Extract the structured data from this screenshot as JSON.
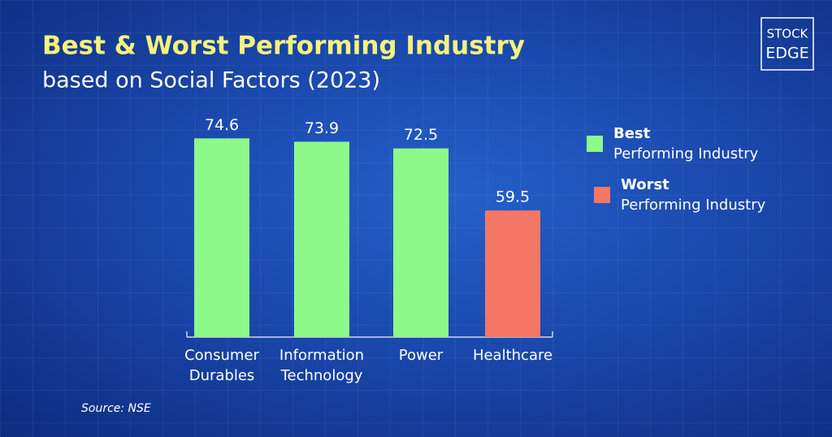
{
  "chart_data": {
    "type": "bar",
    "title": "Best & Worst Performing Industry",
    "subtitle": "based on Social Factors (2023)",
    "categories": [
      "Consumer Durables",
      "Information Technology",
      "Power",
      "Healthcare"
    ],
    "values": [
      74.6,
      73.9,
      72.5,
      59.5
    ],
    "bar_colors": [
      "#8ef98b",
      "#8ef98b",
      "#8ef98b",
      "#f47766"
    ],
    "ylim": [
      33,
      75
    ],
    "legend": [
      {
        "label": "Best",
        "sublabel": "Performing Industry",
        "color": "#8ef98b"
      },
      {
        "label": "Worst",
        "sublabel": "Performing Industry",
        "color": "#f47766"
      }
    ],
    "source": "Source: NSE"
  },
  "logo": {
    "top": "STOCK",
    "bottom": "EDGE"
  }
}
